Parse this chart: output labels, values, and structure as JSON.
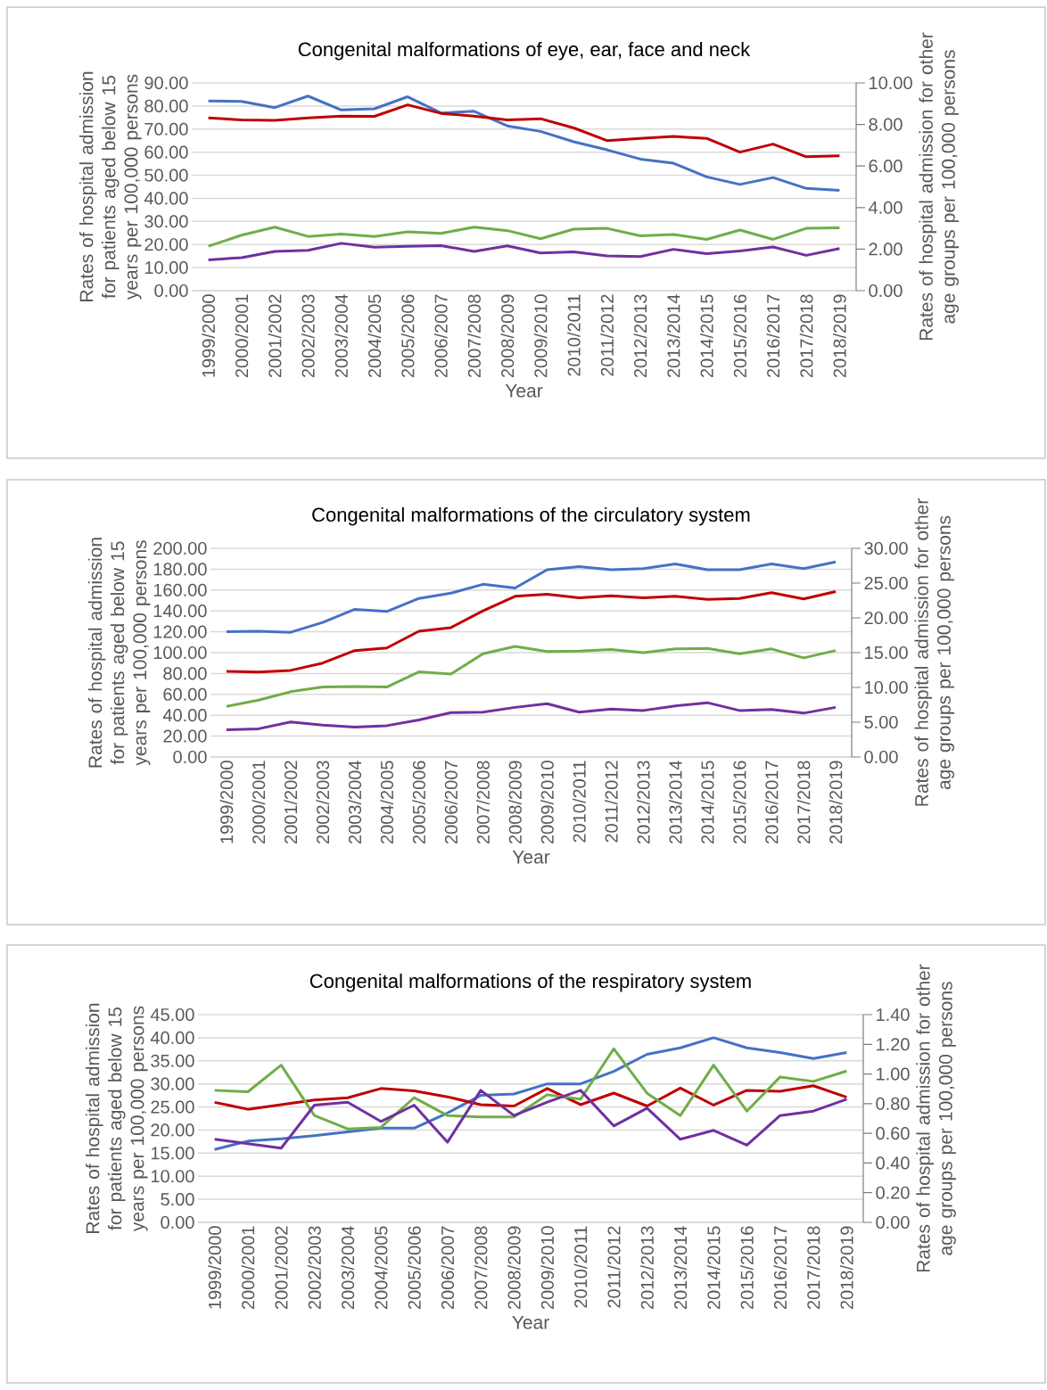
{
  "chart_data": [
    {
      "type": "line",
      "title": "Congenital malformations of eye, ear, face and neck",
      "xlabel": "Year",
      "ylabel": "Rates of hospital admission for patients aged below 15 years per 100,000 persons",
      "y2label": "Rates of hospital admission for other age groups per 100,000 persons",
      "grid": "y",
      "line_style": "solid",
      "categories": [
        "1999/2000",
        "2000/2001",
        "2001/2002",
        "2002/2003",
        "2003/2004",
        "2004/2005",
        "2005/2006",
        "2006/2007",
        "2007/2008",
        "2008/2009",
        "2009/2010",
        "2010/2011",
        "2011/2012",
        "2012/2013",
        "2013/2014",
        "2014/2015",
        "2015/2016",
        "2016/2017",
        "2017/2018",
        "2018/2019"
      ],
      "ylim": [
        0,
        90
      ],
      "yticks": [
        {
          "value": 0,
          "label": "0.00"
        },
        {
          "value": 10,
          "label": "10.00"
        },
        {
          "value": 20,
          "label": "20.00"
        },
        {
          "value": 30,
          "label": "30.00"
        },
        {
          "value": 40,
          "label": "40.00"
        },
        {
          "value": 50,
          "label": "50.00"
        },
        {
          "value": 60,
          "label": "60.00"
        },
        {
          "value": 70,
          "label": "70.00"
        },
        {
          "value": 80,
          "label": "80.00"
        },
        {
          "value": 90,
          "label": "90.00"
        }
      ],
      "y2lim": [
        0,
        10
      ],
      "y2ticks": [
        {
          "value": 0,
          "label": "0.00"
        },
        {
          "value": 2,
          "label": "2.00"
        },
        {
          "value": 4,
          "label": "4.00"
        },
        {
          "value": 6,
          "label": "6.00"
        },
        {
          "value": 8,
          "label": "8.00"
        },
        {
          "value": 10,
          "label": "10.00"
        }
      ],
      "series": [
        {
          "color": "#4472c4",
          "values": [
            82.2,
            82,
            79.3,
            84.3,
            78.3,
            78.8,
            84,
            77,
            77.7,
            71.4,
            69,
            64.5,
            61,
            57,
            55.2,
            49.3,
            46,
            49,
            44.3,
            43.5
          ]
        },
        {
          "color": "#c00000",
          "values": [
            74.8,
            74,
            73.8,
            74.8,
            75.6,
            75.5,
            80.5,
            76.8,
            75.6,
            74,
            74.5,
            70.5,
            65,
            66,
            66.8,
            66,
            60,
            63.5,
            58,
            58.4
          ]
        },
        {
          "color": "#70ad47",
          "axis": "y2",
          "values": [
            2.14,
            2.67,
            3.06,
            2.61,
            2.72,
            2.61,
            2.83,
            2.76,
            3.06,
            2.89,
            2.5,
            2.96,
            3.0,
            2.64,
            2.7,
            2.47,
            2.92,
            2.47,
            3.0,
            3.03
          ]
        },
        {
          "color": "#7030a0",
          "axis": "y2",
          "values": [
            1.48,
            1.59,
            1.89,
            1.94,
            2.28,
            2.09,
            2.13,
            2.17,
            1.89,
            2.16,
            1.81,
            1.87,
            1.67,
            1.64,
            1.99,
            1.78,
            1.91,
            2.1,
            1.7,
            2.03
          ]
        }
      ]
    },
    {
      "type": "line",
      "title": "Congenital malformations of the circulatory system",
      "xlabel": "Year",
      "ylabel": "Rates of hospital admission for patients aged below 15 years per 100,000 persons",
      "y2label": "Rates of hospital admission for other age groups per 100,000 persons",
      "grid": "y",
      "line_style": "solid",
      "categories": [
        "1999/2000",
        "2000/2001",
        "2001/2002",
        "2002/2003",
        "2003/2004",
        "2004/2005",
        "2005/2006",
        "2006/2007",
        "2007/2008",
        "2008/2009",
        "2009/2010",
        "2010/2011",
        "2011/2012",
        "2012/2013",
        "2013/2014",
        "2014/2015",
        "2015/2016",
        "2016/2017",
        "2017/2018",
        "2018/2019"
      ],
      "ylim": [
        0,
        200
      ],
      "yticks": [
        {
          "value": 0,
          "label": "0.00"
        },
        {
          "value": 20,
          "label": "20.00"
        },
        {
          "value": 40,
          "label": "40.00"
        },
        {
          "value": 60,
          "label": "60.00"
        },
        {
          "value": 80,
          "label": "80.00"
        },
        {
          "value": 100,
          "label": "100.00"
        },
        {
          "value": 120,
          "label": "120.00"
        },
        {
          "value": 140,
          "label": "140.00"
        },
        {
          "value": 160,
          "label": "160.00"
        },
        {
          "value": 180,
          "label": "180.00"
        },
        {
          "value": 200,
          "label": "200.00"
        }
      ],
      "y2lim": [
        0,
        30
      ],
      "y2ticks": [
        {
          "value": 0,
          "label": "0.00"
        },
        {
          "value": 5,
          "label": "5.00"
        },
        {
          "value": 10,
          "label": "10.00"
        },
        {
          "value": 15,
          "label": "15.00"
        },
        {
          "value": 20,
          "label": "20.00"
        },
        {
          "value": 25,
          "label": "25.00"
        },
        {
          "value": 30,
          "label": "30.00"
        }
      ],
      "series": [
        {
          "color": "#4472c4",
          "values": [
            120,
            120.5,
            119.5,
            129,
            141.5,
            139.5,
            152,
            157,
            165.5,
            162,
            179.5,
            182.5,
            179.5,
            180.5,
            185,
            179.5,
            179.5,
            185,
            180.5,
            187
          ]
        },
        {
          "color": "#c00000",
          "values": [
            82,
            81.5,
            83,
            90,
            102,
            104.5,
            120.5,
            124,
            140,
            154,
            156,
            152.5,
            154.5,
            152.5,
            154,
            151,
            152,
            157.5,
            151.5,
            158.5
          ]
        },
        {
          "color": "#70ad47",
          "axis": "y2",
          "values": [
            7.28,
            8.18,
            9.38,
            10.05,
            10.13,
            10.05,
            12.23,
            11.93,
            14.85,
            15.9,
            15.15,
            15.23,
            15.45,
            15.0,
            15.53,
            15.6,
            14.85,
            15.53,
            14.25,
            15.3
          ]
        },
        {
          "color": "#7030a0",
          "axis": "y2",
          "values": [
            3.9,
            4.05,
            5.03,
            4.58,
            4.28,
            4.5,
            5.33,
            6.38,
            6.45,
            7.13,
            7.65,
            6.45,
            6.9,
            6.68,
            7.35,
            7.8,
            6.68,
            6.83,
            6.3,
            7.13
          ]
        }
      ]
    },
    {
      "type": "line",
      "title": "Congenital malformations of the respiratory system",
      "xlabel": "Year",
      "ylabel": "Rates of hospital admission for patients aged below 15 years per 100,000 persons",
      "y2label": "Rates of hospital admission for other age groups per 100,000 persons",
      "grid": "y",
      "line_style": "solid",
      "categories": [
        "1999/2000",
        "2000/2001",
        "2001/2002",
        "2002/2003",
        "2003/2004",
        "2004/2005",
        "2005/2006",
        "2006/2007",
        "2007/2008",
        "2008/2009",
        "2009/2010",
        "2010/2011",
        "2011/2012",
        "2012/2013",
        "2013/2014",
        "2014/2015",
        "2015/2016",
        "2016/2017",
        "2017/2018",
        "2018/2019"
      ],
      "ylim": [
        0,
        45
      ],
      "yticks": [
        {
          "value": 0,
          "label": "0.00"
        },
        {
          "value": 5,
          "label": "5.00"
        },
        {
          "value": 10,
          "label": "10.00"
        },
        {
          "value": 15,
          "label": "15.00"
        },
        {
          "value": 20,
          "label": "20.00"
        },
        {
          "value": 25,
          "label": "25.00"
        },
        {
          "value": 30,
          "label": "30.00"
        },
        {
          "value": 35,
          "label": "35.00"
        },
        {
          "value": 40,
          "label": "40.00"
        },
        {
          "value": 45,
          "label": "45.00"
        }
      ],
      "y2lim": [
        0,
        1.4
      ],
      "y2ticks": [
        {
          "value": 0,
          "label": "0.00"
        },
        {
          "value": 0.2,
          "label": "0.20"
        },
        {
          "value": 0.4,
          "label": "0.40"
        },
        {
          "value": 0.6,
          "label": "0.60"
        },
        {
          "value": 0.8,
          "label": "0.80"
        },
        {
          "value": 1.0,
          "label": "1.00"
        },
        {
          "value": 1.2,
          "label": "1.20"
        },
        {
          "value": 1.4,
          "label": "1.40"
        }
      ],
      "series": [
        {
          "color": "#4472c4",
          "values": [
            15.8,
            17.6,
            18.1,
            18.8,
            19.6,
            20.4,
            20.4,
            23.7,
            27.5,
            27.8,
            30,
            30,
            32.7,
            36.4,
            37.8,
            40,
            37.8,
            36.8,
            35.5,
            36.8
          ]
        },
        {
          "color": "#c00000",
          "values": [
            26,
            24.5,
            25.5,
            26.5,
            27,
            29,
            28.5,
            27.2,
            25.5,
            25.2,
            29,
            25.5,
            28,
            25.2,
            29.1,
            25.4,
            28.6,
            28.4,
            29.6,
            27.1
          ]
        },
        {
          "color": "#70ad47",
          "axis": "y2",
          "values": [
            0.89,
            0.88,
            1.06,
            0.72,
            0.63,
            0.64,
            0.84,
            0.72,
            0.71,
            0.71,
            0.86,
            0.83,
            1.17,
            0.87,
            0.72,
            1.06,
            0.75,
            0.98,
            0.95,
            1.02
          ]
        },
        {
          "color": "#7030a0",
          "axis": "y2",
          "values": [
            0.56,
            0.53,
            0.5,
            0.79,
            0.81,
            0.68,
            0.79,
            0.54,
            0.89,
            0.72,
            0.81,
            0.89,
            0.65,
            0.77,
            0.56,
            0.62,
            0.52,
            0.72,
            0.75,
            0.83
          ]
        }
      ]
    }
  ]
}
